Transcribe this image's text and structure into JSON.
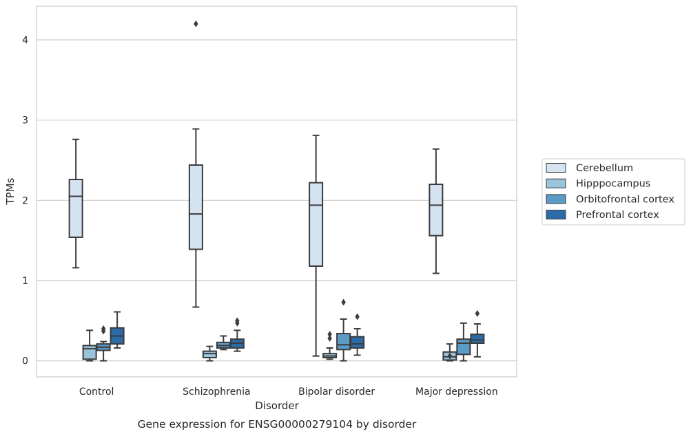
{
  "chart_data": {
    "type": "boxplot",
    "xlabel": "Disorder",
    "ylabel": "TPMs",
    "caption": "Gene expression for ENSG00000279104 by disorder",
    "ylim": [
      -0.2,
      4.42
    ],
    "yticks": [
      0,
      1,
      2,
      3,
      4
    ],
    "grid": "horizontal",
    "legend_position": "right",
    "categories": [
      "Control",
      "Schizophrenia",
      "Bipolar disorder",
      "Major depression"
    ],
    "series": [
      {
        "name": "Cerebellum",
        "color": "#d5e3f1",
        "boxes": [
          {
            "whislo": 1.16,
            "q1": 1.54,
            "med": 2.05,
            "q3": 2.26,
            "whishi": 2.76,
            "fliers": []
          },
          {
            "whislo": 0.67,
            "q1": 1.39,
            "med": 1.83,
            "q3": 2.44,
            "whishi": 2.89,
            "fliers": [
              4.2
            ]
          },
          {
            "whislo": 0.06,
            "q1": 1.18,
            "med": 1.94,
            "q3": 2.22,
            "whishi": 2.81,
            "fliers": []
          },
          {
            "whislo": 1.09,
            "q1": 1.56,
            "med": 1.94,
            "q3": 2.2,
            "whishi": 2.64,
            "fliers": []
          }
        ]
      },
      {
        "name": "Hipppocampus",
        "color": "#9ac4dc",
        "boxes": [
          {
            "whislo": 0.0,
            "q1": 0.02,
            "med": 0.15,
            "q3": 0.19,
            "whishi": 0.38,
            "fliers": []
          },
          {
            "whislo": 0.0,
            "q1": 0.04,
            "med": 0.09,
            "q3": 0.12,
            "whishi": 0.18,
            "fliers": []
          },
          {
            "whislo": 0.02,
            "q1": 0.04,
            "med": 0.06,
            "q3": 0.09,
            "whishi": 0.16,
            "fliers": [
              0.28,
              0.33
            ]
          },
          {
            "whislo": 0.0,
            "q1": 0.01,
            "med": 0.05,
            "q3": 0.11,
            "whishi": 0.21,
            "fliers": [
              0.06
            ]
          }
        ]
      },
      {
        "name": "Orbitofrontal cortex",
        "color": "#5b9bc8",
        "boxes": [
          {
            "whislo": 0.0,
            "q1": 0.13,
            "med": 0.17,
            "q3": 0.21,
            "whishi": 0.24,
            "fliers": [
              0.37,
              0.4
            ]
          },
          {
            "whislo": 0.14,
            "q1": 0.16,
            "med": 0.19,
            "q3": 0.23,
            "whishi": 0.31,
            "fliers": []
          },
          {
            "whislo": 0.0,
            "q1": 0.14,
            "med": 0.2,
            "q3": 0.34,
            "whishi": 0.52,
            "fliers": [
              0.73
            ]
          },
          {
            "whislo": 0.0,
            "q1": 0.08,
            "med": 0.22,
            "q3": 0.27,
            "whishi": 0.47,
            "fliers": []
          }
        ]
      },
      {
        "name": "Prefrontal cortex",
        "color": "#2b6ca8",
        "boxes": [
          {
            "whislo": 0.16,
            "q1": 0.21,
            "med": 0.31,
            "q3": 0.41,
            "whishi": 0.61,
            "fliers": []
          },
          {
            "whislo": 0.12,
            "q1": 0.16,
            "med": 0.22,
            "q3": 0.27,
            "whishi": 0.38,
            "fliers": [
              0.47,
              0.5
            ]
          },
          {
            "whislo": 0.07,
            "q1": 0.16,
            "med": 0.21,
            "q3": 0.3,
            "whishi": 0.4,
            "fliers": [
              0.55
            ]
          },
          {
            "whislo": 0.05,
            "q1": 0.22,
            "med": 0.26,
            "q3": 0.33,
            "whishi": 0.46,
            "fliers": [
              0.59
            ]
          }
        ]
      }
    ]
  }
}
